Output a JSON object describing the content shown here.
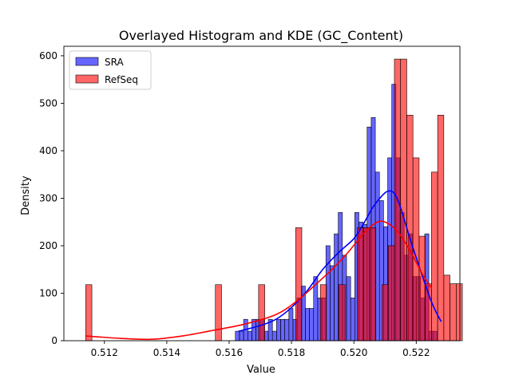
{
  "chart_data": {
    "type": "histogram",
    "title": "Overlayed Histogram and KDE (GC_Content)",
    "xlabel": "Value",
    "ylabel": "Density",
    "xlim": [
      0.5107,
      0.5234
    ],
    "ylim": [
      0,
      620
    ],
    "xticks": [
      "0.512",
      "0.514",
      "0.516",
      "0.518",
      "0.520",
      "0.522"
    ],
    "xtick_values": [
      0.512,
      0.514,
      0.516,
      0.518,
      0.52,
      0.522
    ],
    "yticks": [
      "0",
      "100",
      "200",
      "300",
      "400",
      "500",
      "600"
    ],
    "ytick_values": [
      0,
      100,
      200,
      300,
      400,
      500,
      600
    ],
    "legend_position": "upper-left",
    "series": [
      {
        "name": "SRA",
        "color": "#0000ff",
        "bin_start": 0.5162,
        "bin_width": 0.000132,
        "values": [
          20,
          20,
          45,
          20,
          45,
          45,
          45,
          20,
          45,
          20,
          45,
          45,
          45,
          68,
          45,
          90,
          115,
          68,
          68,
          135,
          90,
          90,
          200,
          158,
          225,
          270,
          180,
          135,
          90,
          270,
          250,
          245,
          450,
          470,
          355,
          295,
          240,
          385,
          540,
          385,
          270,
          180,
          225,
          135,
          135,
          90,
          225,
          20,
          20
        ],
        "kde_x": [
          0.5163,
          0.517,
          0.5175,
          0.518,
          0.5185,
          0.519,
          0.5195,
          0.52,
          0.5203,
          0.5206,
          0.5209,
          0.5211,
          0.5213,
          0.5215,
          0.5218,
          0.5221,
          0.5225,
          0.5228
        ],
        "kde_y": [
          20,
          32,
          45,
          70,
          105,
          150,
          185,
          215,
          245,
          280,
          305,
          315,
          310,
          280,
          215,
          155,
          80,
          40
        ]
      },
      {
        "name": "RefSeq",
        "color": "#ff0000",
        "bin_start": 0.5114,
        "bin_width": 0.000198,
        "values": [
          118,
          0,
          0,
          0,
          0,
          0,
          0,
          0,
          0,
          0,
          0,
          0,
          0,
          0,
          0,
          0,
          0,
          0,
          0,
          0,
          0,
          118,
          0,
          0,
          0,
          0,
          0,
          0,
          118,
          0,
          0,
          0,
          0,
          0,
          238,
          0,
          0,
          0,
          118,
          0,
          0,
          118,
          0,
          0,
          238,
          238,
          238,
          0,
          118,
          200,
          593,
          593,
          475,
          385,
          220,
          120,
          355,
          475,
          138,
          120,
          120
        ],
        "kde_x": [
          0.5114,
          0.5125,
          0.5135,
          0.5145,
          0.5155,
          0.5165,
          0.5175,
          0.5182,
          0.5188,
          0.5193,
          0.5198,
          0.5203,
          0.5207,
          0.521,
          0.5214,
          0.5218,
          0.5222,
          0.5225
        ],
        "kde_y": [
          10,
          5,
          3,
          10,
          22,
          35,
          55,
          85,
          120,
          150,
          185,
          225,
          248,
          250,
          230,
          190,
          140,
          110
        ]
      }
    ]
  }
}
